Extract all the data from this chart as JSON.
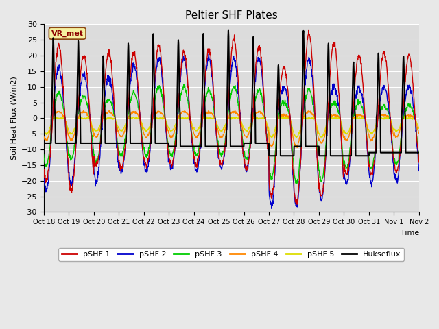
{
  "title": "Peltier SHF Plates",
  "ylabel": "Soil Heat Flux (W/m2)",
  "xlabel": "Time",
  "ylim": [
    -30,
    30
  ],
  "yticks": [
    -30,
    -25,
    -20,
    -15,
    -10,
    -5,
    0,
    5,
    10,
    15,
    20,
    25,
    30
  ],
  "series_colors": {
    "pSHF 1": "#cc0000",
    "pSHF 2": "#0000cc",
    "pSHF 3": "#00cc00",
    "pSHF 4": "#ff8800",
    "pSHF 5": "#dddd00",
    "Hukseflux": "#000000"
  },
  "background_color": "#dcdcdc",
  "fig_background": "#e8e8e8",
  "label_box": "VR_met",
  "n_days": 15,
  "tick_labels": [
    "Oct 18",
    "Oct 19",
    "Oct 20",
    "Oct 21",
    "Oct 22",
    "Oct 23",
    "Oct 24",
    "Oct 25",
    "Oct 26",
    "Oct 27",
    "Oct 28",
    "Oct 29",
    "Oct 30",
    "Oct 31",
    "Nov 1",
    "Nov 2"
  ],
  "huk_peaks": [
    26,
    25,
    20,
    24,
    27,
    25,
    27,
    28,
    26,
    17,
    28,
    24,
    18,
    21,
    20
  ],
  "huk_valleys": [
    -8,
    -8,
    -8,
    -8,
    -8,
    -9,
    -9,
    -9,
    -8,
    -12,
    -9,
    -12,
    -12,
    -11,
    -11
  ],
  "shf1_peaks": [
    23,
    20,
    21,
    21,
    23,
    21,
    22,
    25,
    23,
    16,
    27,
    24,
    20,
    21,
    20
  ],
  "shf1_valleys": [
    -20,
    -23,
    -15,
    -16,
    -15,
    -15,
    -15,
    -15,
    -16,
    -25,
    -27,
    -25,
    -18,
    -18,
    -17
  ],
  "shf2_peaks": [
    16,
    14,
    13,
    17,
    19,
    19,
    19,
    19,
    19,
    10,
    19,
    10,
    10,
    10,
    10
  ],
  "shf2_valleys": [
    -23,
    -21,
    -20,
    -17,
    -17,
    -16,
    -17,
    -16,
    -16,
    -28,
    -28,
    -26,
    -21,
    -21,
    -20
  ],
  "shf3_peaks": [
    8,
    7,
    6,
    8,
    10,
    10,
    9,
    10,
    9,
    5,
    9,
    5,
    5,
    4,
    4
  ],
  "shf3_valleys": [
    -15,
    -13,
    -14,
    -12,
    -12,
    -12,
    -12,
    -12,
    -13,
    -19,
    -21,
    -20,
    -16,
    -16,
    -15
  ],
  "shf4_peaks": [
    2,
    2,
    2,
    2,
    2,
    2,
    2,
    2,
    2,
    1,
    2,
    1,
    1,
    1,
    1
  ],
  "shf4_valleys": [
    -7,
    -7,
    -6,
    -6,
    -6,
    -6,
    -6,
    -6,
    -6,
    -9,
    -9,
    -8,
    -7,
    -7,
    -6
  ],
  "shf5_peaks": [
    0,
    0,
    0,
    0,
    0,
    0,
    0,
    0,
    0,
    0,
    0,
    0,
    0,
    0,
    0
  ],
  "shf5_valleys": [
    -5,
    -5,
    -4,
    -4,
    -4,
    -4,
    -4,
    -4,
    -4,
    -6,
    -6,
    -6,
    -5,
    -5,
    -4
  ]
}
